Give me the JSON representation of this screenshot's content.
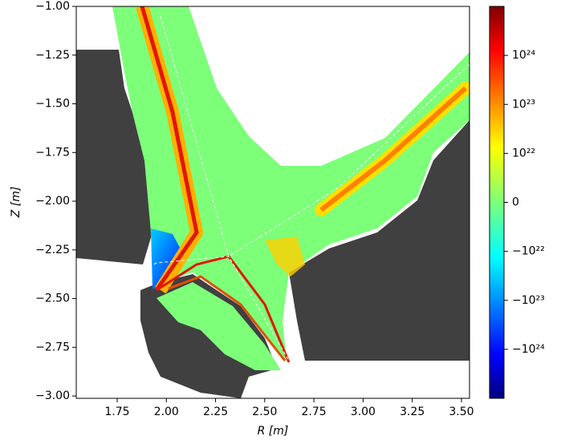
{
  "chart_data": {
    "type": "heatmap",
    "xlabel": "R [m]",
    "ylabel": "Z [m]",
    "xlim": [
      1.542,
      3.541
    ],
    "ylim": [
      -3.012,
      -1.0
    ],
    "xticks": [
      1.75,
      {
        "value": 2,
        "label": "2.00"
      },
      2.25,
      {
        "value": 2.5,
        "label": "2.50"
      },
      2.75,
      {
        "value": 3,
        "label": "3.00"
      },
      3.25,
      {
        "value": 3.5,
        "label": "3.50"
      }
    ],
    "yticks": [
      {
        "value": -3,
        "label": "−3.00"
      },
      {
        "value": -2.75,
        "label": "−2.75"
      },
      {
        "value": -2.5,
        "label": "−2.50"
      },
      {
        "value": -2.25,
        "label": "−2.25"
      },
      {
        "value": -2,
        "label": "−2.00"
      },
      {
        "value": -1.75,
        "label": "−1.75"
      },
      {
        "value": -1.5,
        "label": "−1.50"
      },
      {
        "value": -1.25,
        "label": "−1.25"
      },
      {
        "value": -1,
        "label": "−1.00"
      }
    ],
    "colormap": "jet",
    "colorbar": {
      "scale": "symlog",
      "linthresh": 1e+22,
      "clim": [
        -1e+25,
        1e+25
      ],
      "ticks": [
        {
          "value": 1e+24,
          "label": "10²⁴"
        },
        {
          "value": 1e+23,
          "label": "10²³"
        },
        {
          "value": 1e+22,
          "label": "10²²"
        },
        0,
        {
          "value": -1e+22,
          "label": "−10²²"
        },
        {
          "value": -1e+23,
          "label": "−10²³"
        },
        {
          "value": -1e+24,
          "label": "−10²⁴"
        }
      ]
    }
  }
}
